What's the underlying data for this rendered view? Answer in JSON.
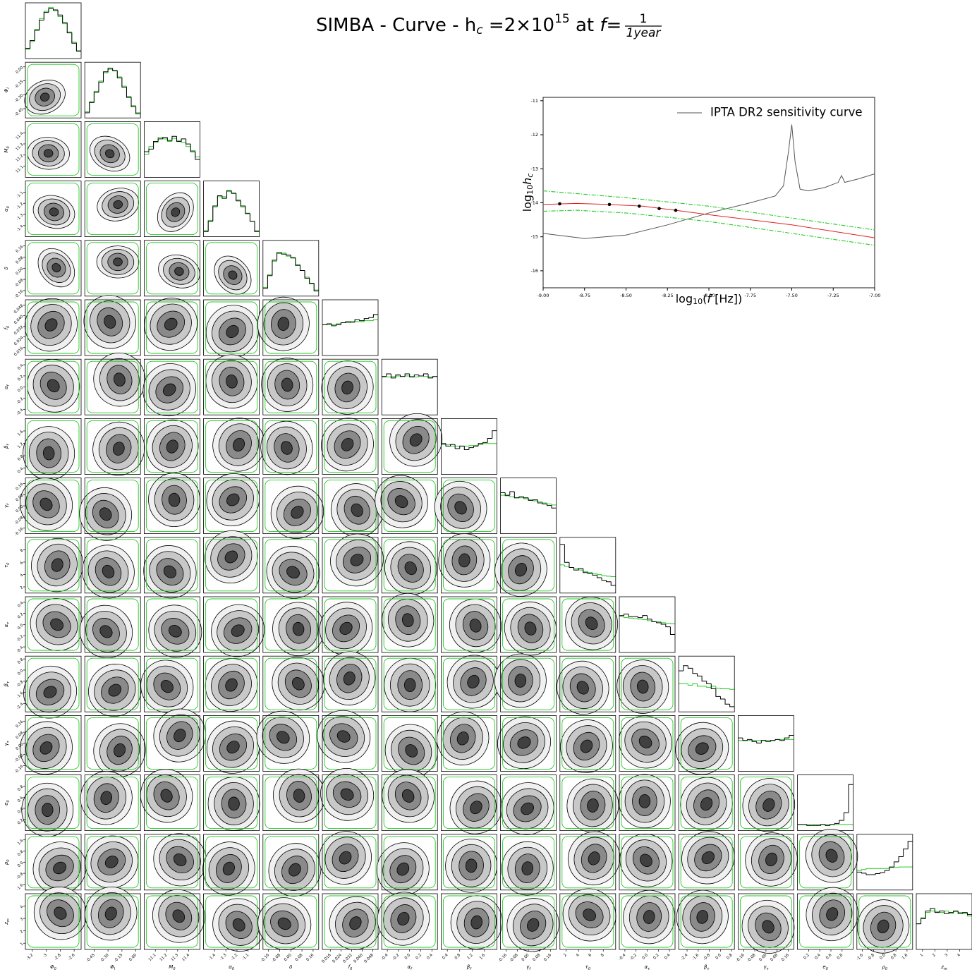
{
  "title_parts": [
    "SIMBA - Curve - h",
    "c",
    " =2×10",
    "15",
    " at ",
    "f",
    "=",
    "1",
    "1year"
  ],
  "chart_data": [
    {
      "type": "corner",
      "hist_color": "#000000",
      "prior_color": "#22cc22",
      "parameters": [
        {
          "symbol": "Φ",
          "subscript": "0",
          "lim": [
            -3.3,
            -2.5
          ],
          "ticks": [
            -3.2,
            -3.0,
            -2.8,
            -2.6
          ],
          "hist": [
            0.2,
            0.35,
            0.55,
            0.75,
            0.9,
            0.97,
            0.95,
            0.85,
            0.7,
            0.5,
            0.3,
            0.15
          ],
          "hist_prior": [
            0.18,
            0.33,
            0.57,
            0.78,
            0.92,
            1.0,
            0.93,
            0.82,
            0.68,
            0.52,
            0.32,
            0.14
          ]
        },
        {
          "symbol": "Φ",
          "subscript": "I",
          "lim": [
            -0.55,
            0.05
          ],
          "ticks": [
            {
              "value": -0.45,
              "label": "-0.45"
            },
            {
              "value": -0.3,
              "label": "-0.30"
            },
            {
              "value": -0.15,
              "label": "-0.15"
            },
            {
              "value": 0,
              "label": "0.00"
            }
          ],
          "hist": [
            0.1,
            0.3,
            0.5,
            0.7,
            0.9,
            0.97,
            0.92,
            0.78,
            0.6,
            0.4,
            0.22,
            0.08
          ],
          "hist_prior": [
            0.12,
            0.32,
            0.52,
            0.72,
            0.88,
            0.95,
            0.93,
            0.8,
            0.62,
            0.42,
            0.24,
            0.1
          ]
        },
        {
          "symbol": "M",
          "subscript": "0",
          "lim": [
            11.0,
            11.5
          ],
          "ticks": [
            11.1,
            11.2,
            11.3,
            11.4
          ],
          "hist": [
            0.5,
            0.55,
            0.7,
            0.75,
            0.78,
            0.72,
            0.8,
            0.7,
            0.75,
            0.65,
            0.5,
            0.35
          ],
          "hist_prior": [
            0.45,
            0.6,
            0.68,
            0.78,
            0.75,
            0.7,
            0.76,
            0.72,
            0.68,
            0.6,
            0.52,
            0.4
          ]
        },
        {
          "symbol": "α",
          "subscript": "0",
          "lim": [
            -1.5,
            -1.0
          ],
          "ticks": [
            -1.4,
            -1.3,
            -1.2,
            -1.1
          ],
          "hist": [
            0.1,
            0.3,
            0.6,
            0.8,
            0.75,
            0.9,
            0.85,
            0.7,
            0.6,
            0.45,
            0.3,
            0.1
          ],
          "hist_prior": [
            0.12,
            0.32,
            0.58,
            0.78,
            0.78,
            0.88,
            0.84,
            0.72,
            0.58,
            0.46,
            0.3,
            0.12
          ]
        },
        {
          "symbol": "δ",
          "subscript": "",
          "lim": [
            -0.2,
            0.2
          ],
          "ticks": [
            -0.16,
            -0.08,
            {
              "value": 0,
              "label": "0.00"
            },
            0.08,
            0.16
          ],
          "hist": [
            0.15,
            0.4,
            0.7,
            0.85,
            0.82,
            0.8,
            0.75,
            0.6,
            0.5,
            0.35,
            0.25,
            0.1
          ],
          "hist_prior": [
            0.17,
            0.42,
            0.68,
            0.83,
            0.84,
            0.78,
            0.74,
            0.62,
            0.5,
            0.37,
            0.24,
            0.12
          ]
        },
        {
          "symbol": "f",
          "subscript": "0",
          "lim": [
            0.01,
            0.052
          ],
          "ticks": [
            0.016,
            0.024,
            0.032,
            {
              "value": 0.04,
              "label": "0.040"
            },
            0.048
          ],
          "hist": [
            0.6,
            0.62,
            0.58,
            0.6,
            0.64,
            0.66,
            0.65,
            0.7,
            0.68,
            0.72,
            0.74,
            0.8
          ],
          "hist_prior": [
            0.6,
            0.6,
            0.6,
            0.62,
            0.64,
            0.64,
            0.66,
            0.66,
            0.66,
            0.68,
            0.68,
            0.7
          ]
        },
        {
          "symbol": "α",
          "subscript": "f",
          "lim": [
            -0.5,
            0.5
          ],
          "ticks": [
            -0.4,
            -0.2,
            {
              "value": 0,
              "label": "0.0"
            },
            0.2,
            0.4
          ],
          "hist": [
            0.75,
            0.8,
            0.72,
            0.78,
            0.75,
            0.8,
            0.74,
            0.78,
            0.76,
            0.8,
            0.72,
            0.75
          ],
          "hist_prior": [
            0.74,
            0.74,
            0.75,
            0.76,
            0.75,
            0.76,
            0.75,
            0.74,
            0.76,
            0.75,
            0.74,
            0.75
          ]
        },
        {
          "symbol": "β",
          "subscript": "f",
          "lim": [
            0.2,
            2.0
          ],
          "ticks": [
            0.4,
            0.8,
            1.2,
            1.6
          ],
          "hist": [
            0.6,
            0.55,
            0.58,
            0.5,
            0.55,
            0.48,
            0.52,
            0.55,
            0.6,
            0.62,
            0.7,
            0.85
          ],
          "hist_prior": [
            0.58,
            0.58,
            0.55,
            0.55,
            0.55,
            0.55,
            0.56,
            0.56,
            0.58,
            0.6,
            0.6,
            0.6
          ]
        },
        {
          "symbol": "γ",
          "subscript": "f",
          "lim": [
            -0.2,
            0.2
          ],
          "ticks": [
            -0.16,
            -0.08,
            {
              "value": 0,
              "label": "0.00"
            },
            0.08,
            0.16
          ],
          "hist": [
            0.8,
            0.75,
            0.82,
            0.7,
            0.72,
            0.7,
            0.65,
            0.66,
            0.6,
            0.58,
            0.55,
            0.5
          ],
          "hist_prior": [
            0.75,
            0.74,
            0.72,
            0.7,
            0.7,
            0.68,
            0.66,
            0.64,
            0.62,
            0.6,
            0.58,
            0.56
          ]
        },
        {
          "symbol": "τ",
          "subscript": "0",
          "lim": [
            1,
            10
          ],
          "ticks": [
            2,
            4,
            6,
            8
          ],
          "hist": [
            0.95,
            0.6,
            0.5,
            0.45,
            0.48,
            0.4,
            0.38,
            0.35,
            0.3,
            0.25,
            0.22,
            0.15
          ],
          "hist_prior": [
            0.55,
            0.52,
            0.5,
            0.48,
            0.45,
            0.42,
            0.4,
            0.38,
            0.36,
            0.34,
            0.33,
            0.32
          ]
        },
        {
          "symbol": "α",
          "subscript": "τ",
          "lim": [
            -0.5,
            0.5
          ],
          "ticks": [
            -0.4,
            -0.2,
            {
              "value": 0,
              "label": "0.0"
            },
            0.2,
            0.4
          ],
          "hist": [
            0.72,
            0.75,
            0.7,
            0.7,
            0.68,
            0.72,
            0.65,
            0.6,
            0.58,
            0.55,
            0.5,
            0.35
          ],
          "hist_prior": [
            0.7,
            0.68,
            0.67,
            0.66,
            0.65,
            0.64,
            0.62,
            0.6,
            0.6,
            0.58,
            0.57,
            0.56
          ]
        },
        {
          "symbol": "β",
          "subscript": "τ",
          "lim": [
            -3.0,
            1.0
          ],
          "ticks": [
            -2.4,
            -1.6,
            -0.8,
            {
              "value": 0,
              "label": "0.0"
            },
            0.8
          ],
          "hist": [
            0.8,
            0.9,
            0.85,
            0.75,
            0.7,
            0.6,
            0.55,
            0.45,
            0.3,
            0.25,
            0.15,
            0.1
          ],
          "hist_prior": [
            0.55,
            0.55,
            0.52,
            0.55,
            0.5,
            0.5,
            0.48,
            0.5,
            0.46,
            0.45,
            0.45,
            0.44
          ]
        },
        {
          "symbol": "γ",
          "subscript": "τ",
          "lim": [
            -0.2,
            0.2
          ],
          "ticks": [
            -0.16,
            -0.08,
            {
              "value": 0,
              "label": "0.00"
            },
            0.08,
            0.16
          ],
          "hist": [
            0.65,
            0.6,
            0.62,
            0.58,
            0.55,
            0.6,
            0.58,
            0.6,
            0.62,
            0.6,
            0.65,
            0.7
          ],
          "hist_prior": [
            0.6,
            0.6,
            0.6,
            0.6,
            0.6,
            0.6,
            0.6,
            0.6,
            0.62,
            0.62,
            0.62,
            0.62
          ]
        },
        {
          "symbol": "e",
          "subscript": "0",
          "lim": [
            0.0,
            1.0
          ],
          "ticks": [
            0.2,
            0.4,
            0.6,
            0.8
          ],
          "hist": [
            0.12,
            0.12,
            0.1,
            0.1,
            0.1,
            0.12,
            0.1,
            0.12,
            0.14,
            0.2,
            0.35,
            0.9
          ],
          "hist_prior": [
            0.12,
            0.12,
            0.12,
            0.12,
            0.12,
            0.12,
            0.12,
            0.12,
            0.12,
            0.12,
            0.12,
            0.12
          ]
        },
        {
          "symbol": "ρ",
          "subscript": "0",
          "lim": [
            -2.0,
            2.0
          ],
          "ticks": [
            -1.6,
            -0.8,
            {
              "value": 0,
              "label": "0.0"
            },
            0.8,
            1.6
          ],
          "hist": [
            0.35,
            0.33,
            0.3,
            0.3,
            0.32,
            0.34,
            0.38,
            0.45,
            0.55,
            0.65,
            0.8,
            0.95
          ],
          "hist_prior": [
            0.38,
            0.4,
            0.42,
            0.42,
            0.42,
            0.42,
            0.42,
            0.44,
            0.44,
            0.45,
            0.45,
            0.45
          ]
        },
        {
          "symbol": "z",
          "subscript": "m",
          "lim": [
            0.5,
            5.0
          ],
          "ticks": [
            1,
            2,
            3,
            4
          ],
          "hist": [
            0.5,
            0.6,
            0.75,
            0.8,
            0.72,
            0.75,
            0.7,
            0.72,
            0.75,
            0.7,
            0.72,
            0.68
          ],
          "hist_prior": [
            0.5,
            0.62,
            0.72,
            0.75,
            0.74,
            0.72,
            0.75,
            0.7,
            0.74,
            0.72,
            0.7,
            0.65
          ]
        }
      ]
    },
    {
      "type": "line",
      "xlabel_parts": [
        "log",
        "10",
        "(",
        "f",
        " [Hz])"
      ],
      "ylabel_parts": [
        "log",
        "10",
        "h",
        "c"
      ],
      "xlim": [
        -9.0,
        -7.0
      ],
      "xticks": [
        {
          "value": -9,
          "label": "-9.00"
        },
        -8.75,
        {
          "value": -8.5,
          "label": "-8.50"
        },
        -8.25,
        {
          "value": -8,
          "label": "-8.00"
        },
        -7.75,
        {
          "value": -7.5,
          "label": "-7.50"
        },
        -7.25,
        {
          "value": -7,
          "label": "-7.00"
        }
      ],
      "ylim": [
        -16.5,
        -10.9
      ],
      "yticks": [
        -16,
        -15,
        -14,
        -13,
        -12,
        -11
      ],
      "legend": "upper right",
      "series": [
        {
          "name": "IPTA DR2 sensitivity curve",
          "color": "#555555",
          "style": "solid",
          "x": [
            -9,
            -8.75,
            -8.5,
            -8.25,
            -8,
            -7.75,
            -7.6,
            -7.55,
            -7.52,
            -7.5,
            -7.48,
            -7.45,
            -7.4,
            -7.3,
            -7.22,
            -7.2,
            -7.18,
            -7.1,
            -7
          ],
          "values": [
            -14.9,
            -15.05,
            -14.95,
            -14.65,
            -14.3,
            -14.0,
            -13.8,
            -13.5,
            -12.5,
            -11.7,
            -12.8,
            -13.6,
            -13.65,
            -13.55,
            -13.4,
            -13.2,
            -13.4,
            -13.3,
            -13.15
          ]
        },
        {
          "color": "#e02020",
          "style": "solid",
          "x": [
            -9,
            -8.8,
            -8.6,
            -8.4,
            -8.2,
            -8,
            -7.5,
            -7
          ],
          "values": [
            -14.05,
            -14.02,
            -14.05,
            -14.1,
            -14.22,
            -14.35,
            -14.65,
            -15.03
          ]
        },
        {
          "color": "#22cc22",
          "style": "dashdot",
          "x": [
            -9,
            -8.5,
            -8,
            -7.5,
            -7
          ],
          "values": [
            -13.65,
            -13.85,
            -14.1,
            -14.45,
            -14.8
          ]
        },
        {
          "color": "#22cc22",
          "style": "dashdot",
          "x": [
            -9,
            -8.8,
            -8.5,
            -8,
            -7.5,
            -7
          ],
          "values": [
            -14.25,
            -14.22,
            -14.3,
            -14.55,
            -14.9,
            -15.25
          ]
        },
        {
          "color": "#000000",
          "style": "points",
          "x": [
            -8.9,
            -8.6,
            -8.42,
            -8.3,
            -8.2
          ],
          "values": [
            -14.03,
            -14.05,
            -14.1,
            -14.17,
            -14.22
          ]
        }
      ]
    }
  ]
}
